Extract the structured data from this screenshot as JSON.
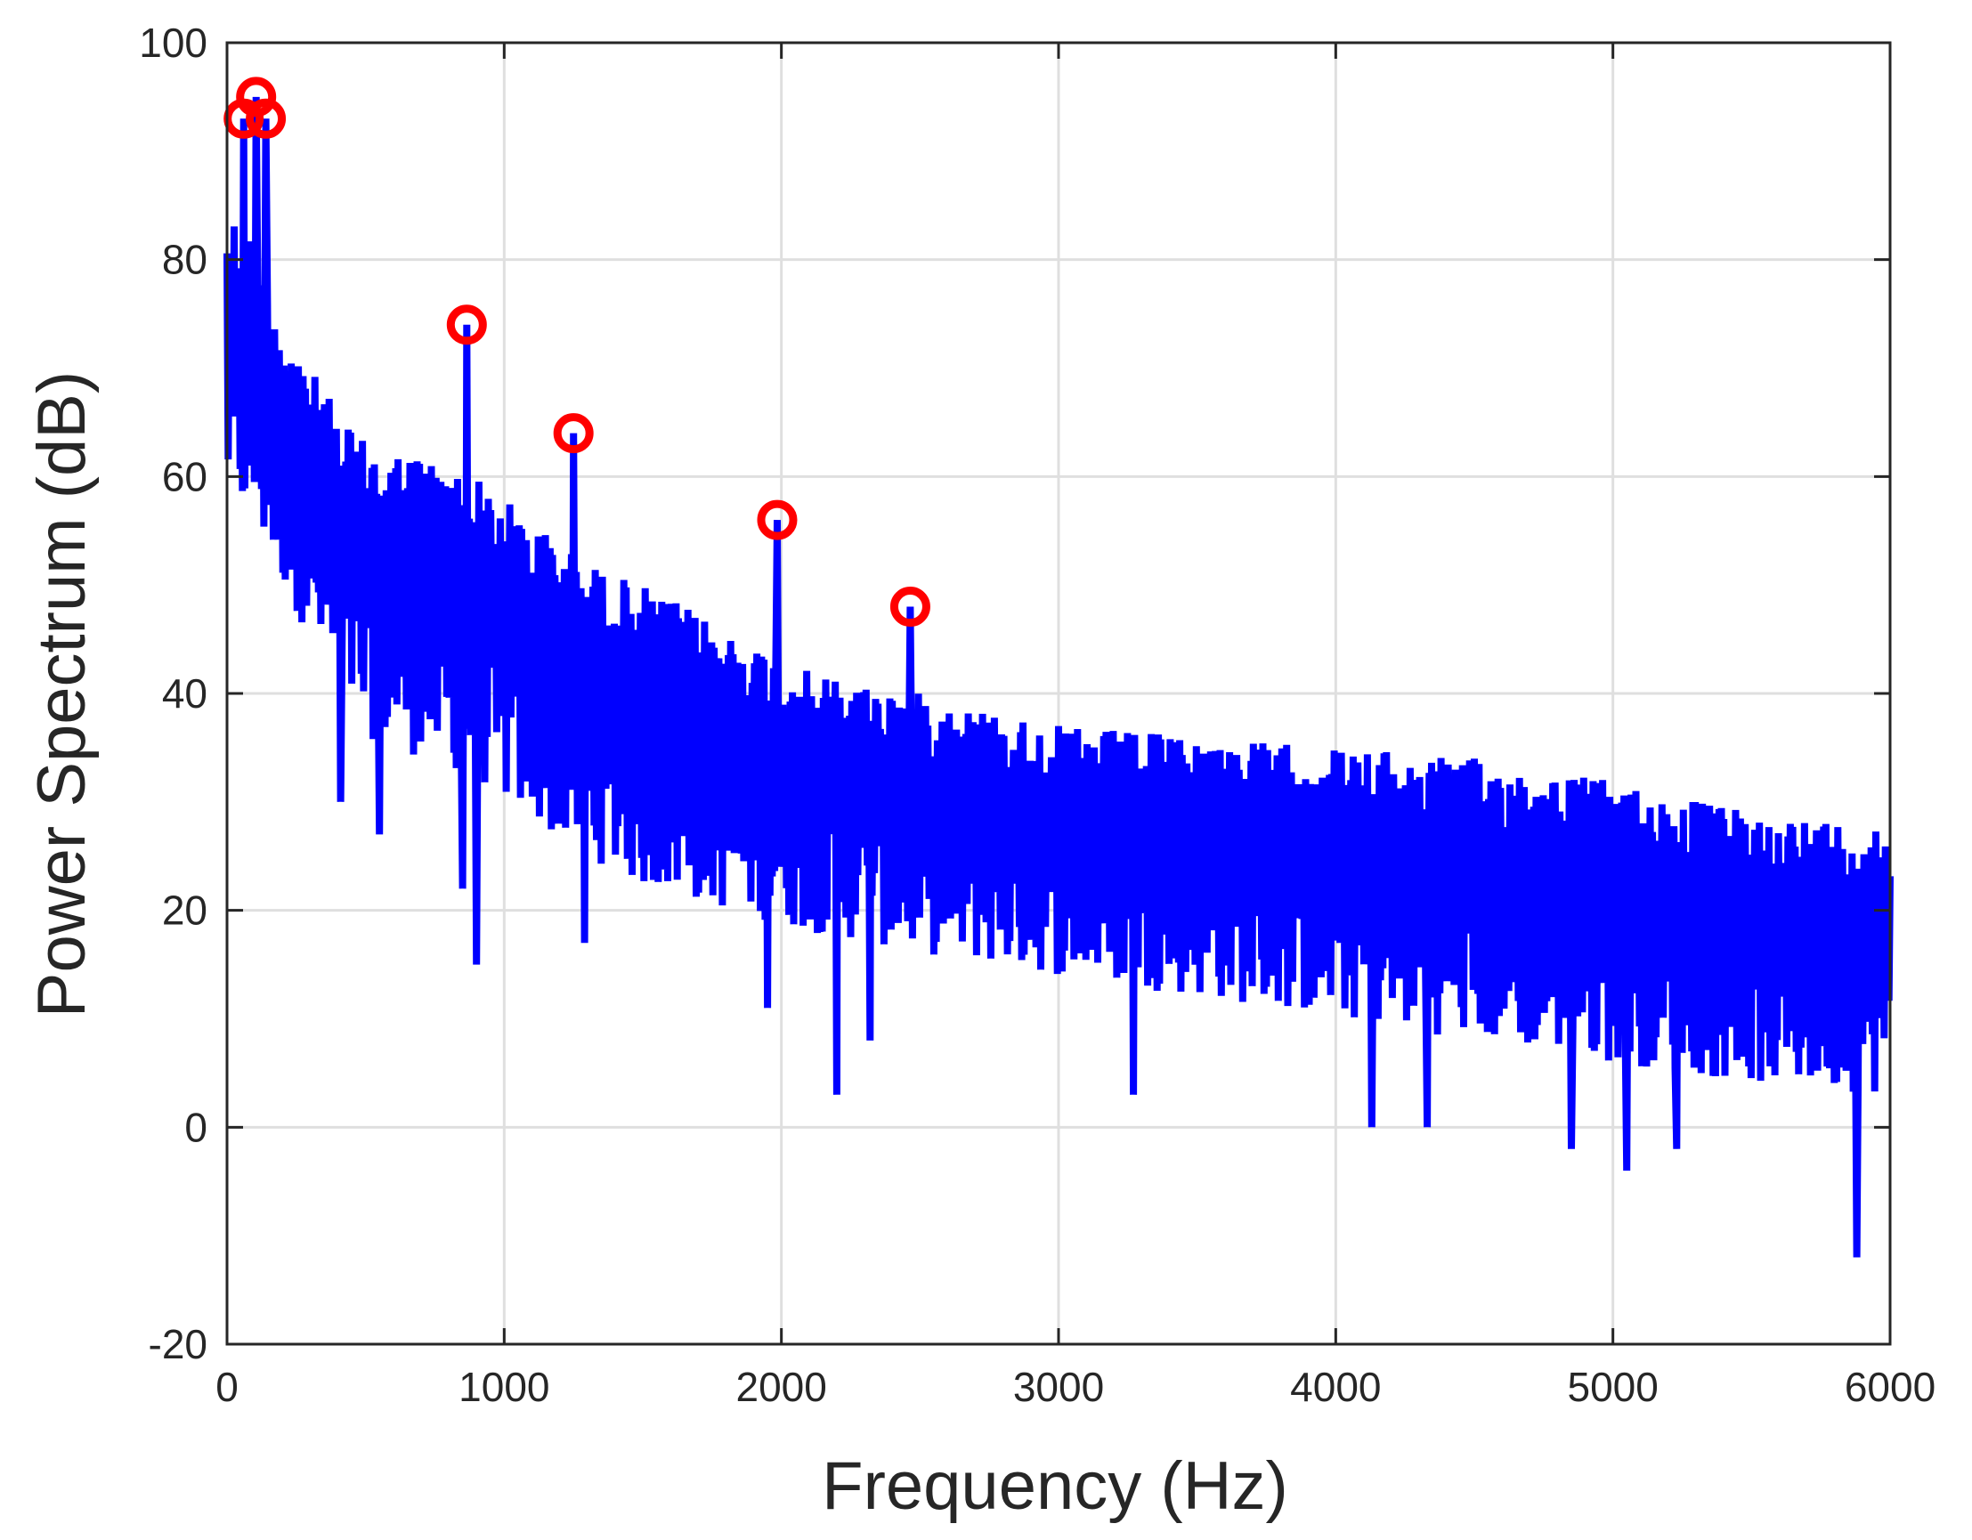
{
  "chart_data": {
    "type": "line",
    "xlabel": "Frequency (Hz)",
    "ylabel": "Power Spectrum (dB)",
    "xlim": [
      0,
      6000
    ],
    "ylim": [
      -20,
      100
    ],
    "x_ticks": [
      0,
      1000,
      2000,
      3000,
      4000,
      5000,
      6000
    ],
    "y_ticks": [
      -20,
      0,
      20,
      40,
      60,
      80,
      100
    ],
    "x_tick_labels": [
      "0",
      "1000",
      "2000",
      "3000",
      "4000",
      "5000",
      "6000"
    ],
    "y_tick_labels": [
      "-20",
      "0",
      "20",
      "40",
      "60",
      "80",
      "100"
    ],
    "grid": true,
    "series": [
      {
        "color": "#0000ff",
        "trend": {
          "x": [
            0,
            100,
            200,
            300,
            400,
            500,
            700,
            900,
            1100,
            1300,
            1500,
            1800,
            2100,
            2500,
            3000,
            3500,
            4000,
            4500,
            5000,
            5500,
            6000
          ],
          "upper": [
            85,
            82,
            74,
            70,
            66,
            63,
            62,
            60,
            56,
            52,
            50,
            46,
            42,
            40,
            37,
            36,
            35,
            34,
            32,
            29,
            28
          ],
          "lower": [
            58,
            55,
            50,
            45,
            40,
            36,
            34,
            32,
            28,
            25,
            22,
            20,
            18,
            16,
            14,
            12,
            10,
            8,
            6,
            4,
            3
          ]
        },
        "deep_dips": [
          {
            "x": 410,
            "y": 30
          },
          {
            "x": 550,
            "y": 27
          },
          {
            "x": 850,
            "y": 22
          },
          {
            "x": 900,
            "y": 15
          },
          {
            "x": 1250,
            "y": 6
          },
          {
            "x": 1290,
            "y": 17
          },
          {
            "x": 1950,
            "y": 11
          },
          {
            "x": 2200,
            "y": 3
          },
          {
            "x": 2320,
            "y": 8
          },
          {
            "x": 3270,
            "y": 3
          },
          {
            "x": 4130,
            "y": 0
          },
          {
            "x": 4330,
            "y": 0
          },
          {
            "x": 4850,
            "y": -2
          },
          {
            "x": 5050,
            "y": -4
          },
          {
            "x": 5230,
            "y": -2
          },
          {
            "x": 5880,
            "y": -12
          }
        ],
        "peaks": [
          {
            "x": 60,
            "y": 93
          },
          {
            "x": 105,
            "y": 95
          },
          {
            "x": 140,
            "y": 93
          },
          {
            "x": 865,
            "y": 74
          },
          {
            "x": 1250,
            "y": 64
          },
          {
            "x": 1985,
            "y": 56
          },
          {
            "x": 2465,
            "y": 48
          }
        ]
      }
    ],
    "markers": {
      "style": "circle",
      "color": "#ff0000",
      "points": [
        {
          "x": 60,
          "y": 93
        },
        {
          "x": 105,
          "y": 95
        },
        {
          "x": 140,
          "y": 93
        },
        {
          "x": 865,
          "y": 74
        },
        {
          "x": 1250,
          "y": 64
        },
        {
          "x": 1985,
          "y": 56
        },
        {
          "x": 2465,
          "y": 48
        }
      ]
    }
  }
}
